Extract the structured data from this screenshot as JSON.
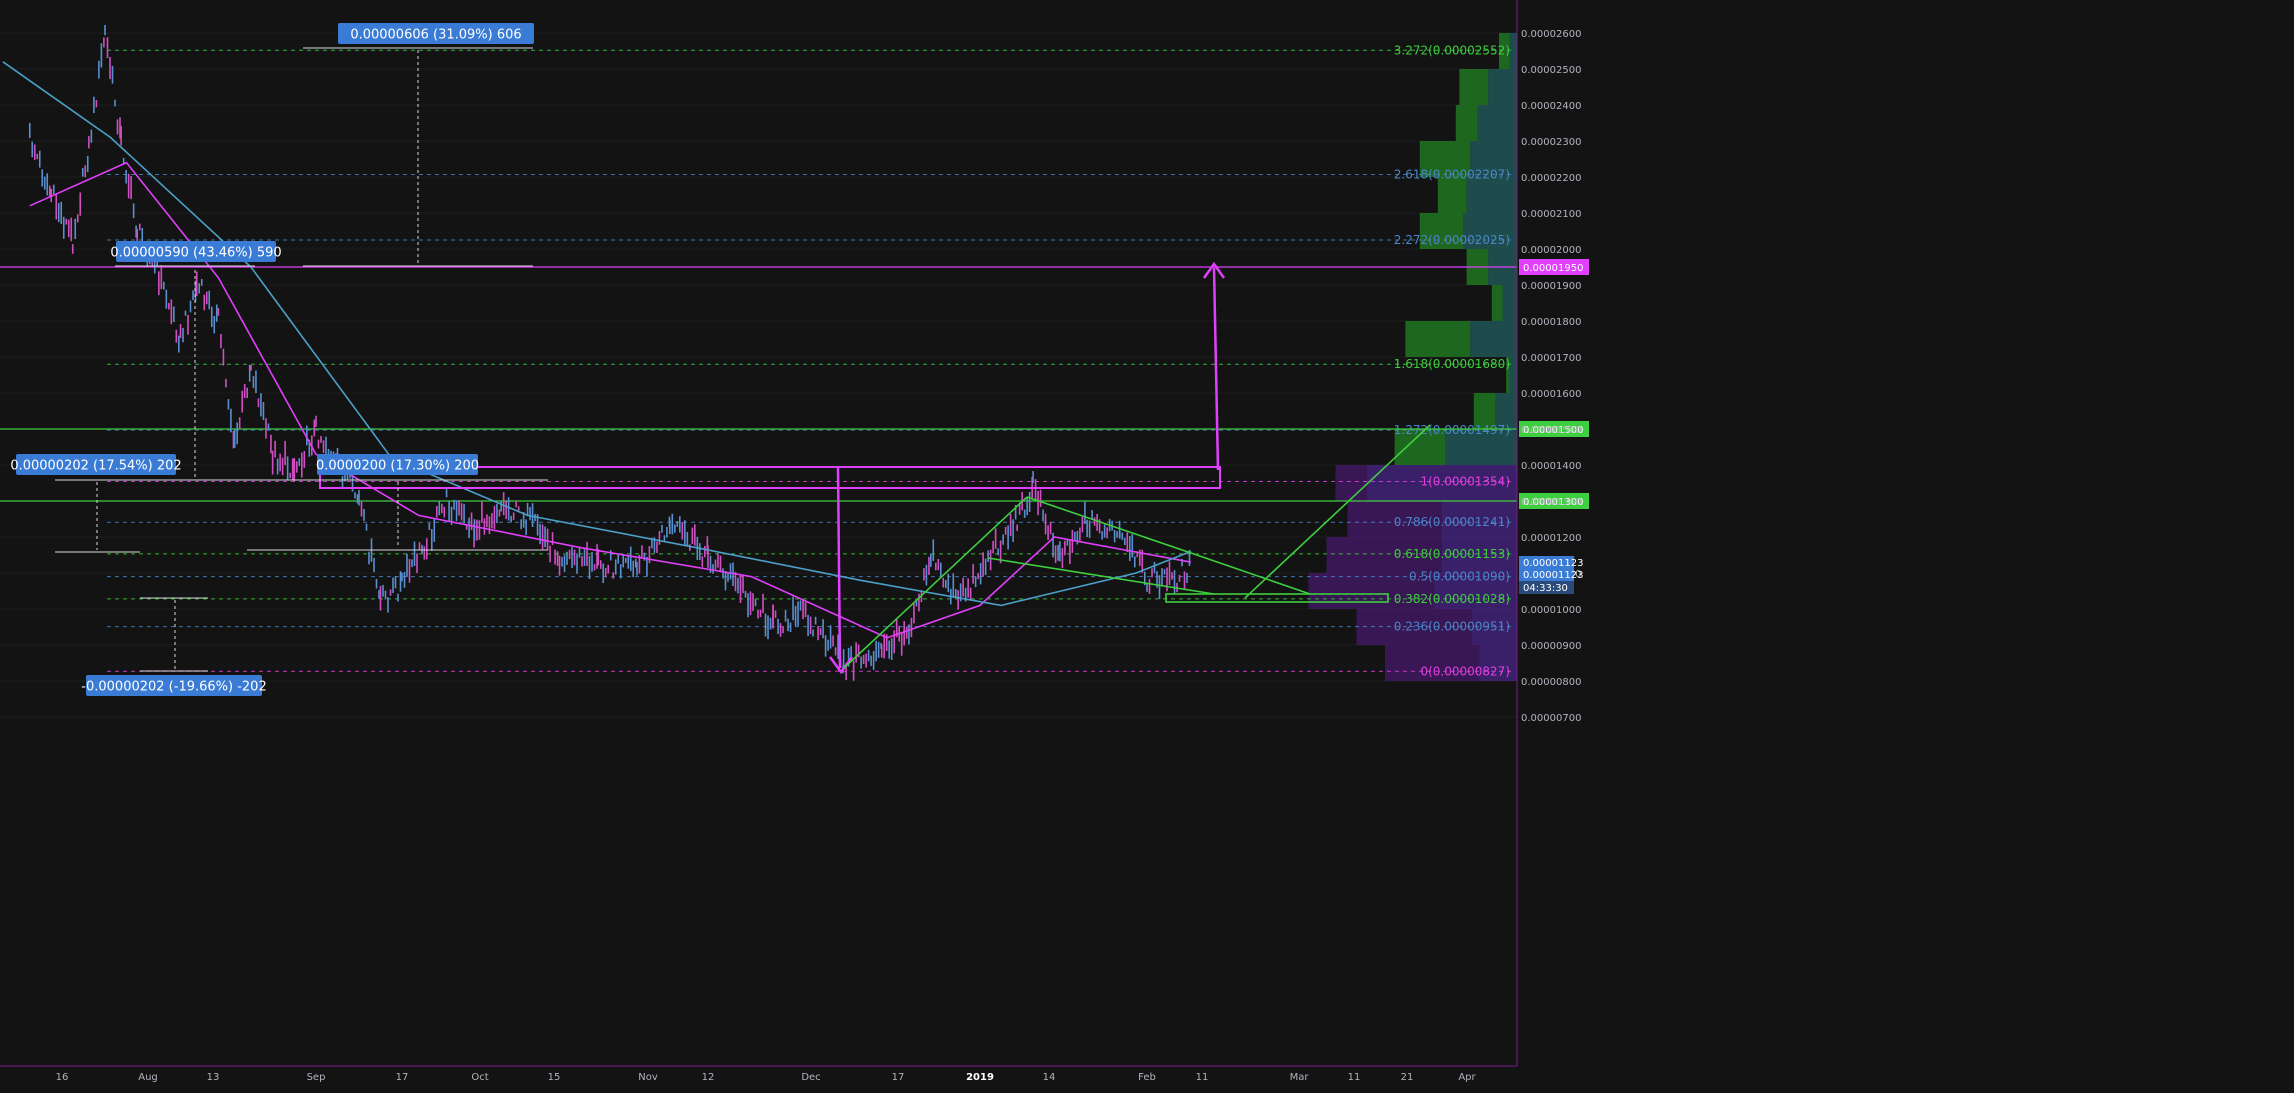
{
  "chart_data": {
    "type": "line",
    "chart_style": "candlestick price chart with fibonacci extension, volume profile and drawn annotations",
    "x_axis_labels": [
      "16",
      "Aug",
      "13",
      "Sep",
      "17",
      "Oct",
      "15",
      "Nov",
      "12",
      "Dec",
      "17",
      "2019",
      "14",
      "Feb",
      "11",
      "Mar",
      "11",
      "21",
      "Apr"
    ],
    "y_axis_ticks": [
      "0.00002600",
      "0.00002500",
      "0.00002400",
      "0.00002300",
      "0.00002200",
      "0.00002100",
      "0.00002000",
      "0.00001900",
      "0.00001800",
      "0.00001700",
      "0.00001600",
      "0.00001500",
      "0.00001400",
      "0.00001300",
      "0.00001200",
      "0.00001100",
      "0.00001000",
      "0.00000900",
      "0.00000800",
      "0.00000700"
    ],
    "ylim": [
      6.6e-06,
      2.67e-05
    ],
    "price_series": {
      "name": "",
      "points": [
        [
          "Jul 10",
          2.31e-05
        ],
        [
          "Jul 14",
          2.15e-05
        ],
        [
          "Jul 18",
          2.03e-05
        ],
        [
          "Jul 21",
          2.28e-05
        ],
        [
          "Jul 24",
          2.6e-05
        ],
        [
          "Jul 27",
          2.3e-05
        ],
        [
          "Jul 30",
          2.05e-05
        ],
        [
          "Aug 3",
          1.93e-05
        ],
        [
          "Aug 7",
          1.75e-05
        ],
        [
          "Aug 10",
          1.9e-05
        ],
        [
          "Aug 14",
          1.8e-05
        ],
        [
          "Aug 17",
          1.45e-05
        ],
        [
          "Aug 20",
          1.68e-05
        ],
        [
          "Aug 24",
          1.43e-05
        ],
        [
          "Aug 28",
          1.39e-05
        ],
        [
          "Sep 1",
          1.5e-05
        ],
        [
          "Sep 5",
          1.4e-05
        ],
        [
          "Sep 9",
          1.3e-05
        ],
        [
          "Sep 13",
          1.02e-05
        ],
        [
          "Sep 17",
          1.07e-05
        ],
        [
          "Sep 21",
          1.18e-05
        ],
        [
          "Sep 25",
          1.3e-05
        ],
        [
          "Sep 30",
          1.22e-05
        ],
        [
          "Oct 5",
          1.29e-05
        ],
        [
          "Oct 10",
          1.25e-05
        ],
        [
          "Oct 16",
          1.15e-05
        ],
        [
          "Oct 23",
          1.13e-05
        ],
        [
          "Oct 30",
          1.11e-05
        ],
        [
          "Nov 5",
          1.23e-05
        ],
        [
          "Nov 12",
          1.15e-05
        ],
        [
          "Nov 18",
          1.06e-05
        ],
        [
          "Nov 24",
          9.6e-06
        ],
        [
          "Nov 30",
          9.9e-06
        ],
        [
          "Dec 7",
          8.5e-06
        ],
        [
          "Dec 14",
          8.8e-06
        ],
        [
          "Dec 19",
          9.5e-06
        ],
        [
          "Dec 23",
          1.15e-05
        ],
        [
          "Dec 28",
          1.02e-05
        ],
        [
          "Jan 3",
          1.15e-05
        ],
        [
          "Jan 8",
          1.25e-05
        ],
        [
          "Jan 11",
          1.34e-05
        ],
        [
          "Jan 16",
          1.15e-05
        ],
        [
          "Jan 21",
          1.25e-05
        ],
        [
          "Jan 27",
          1.2e-05
        ],
        [
          "Feb 1",
          1.09e-05
        ],
        [
          "Feb 6",
          1.08e-05
        ],
        [
          "Feb 9",
          1.123e-05
        ]
      ]
    },
    "moving_averages": [
      {
        "color": "#e040fb",
        "points": [
          [
            "Jul 10",
            2.12e-05
          ],
          [
            "Jul 28",
            2.24e-05
          ],
          [
            "Aug 14",
            1.92e-05
          ],
          [
            "Sep 1",
            1.43e-05
          ],
          [
            "Sep 20",
            1.26e-05
          ],
          [
            "Oct 20",
            1.17e-05
          ],
          [
            "Nov 20",
            1.09e-05
          ],
          [
            "Dec 15",
            9.2e-06
          ],
          [
            "Jan 1",
            1.01e-05
          ],
          [
            "Jan 15",
            1.2e-05
          ],
          [
            "Feb 9",
            1.13e-05
          ]
        ]
      },
      {
        "color": "#4aa0c8",
        "points": [
          [
            "Jul 5",
            2.52e-05
          ],
          [
            "Jul 25",
            2.31e-05
          ],
          [
            "Aug 20",
            1.95e-05
          ],
          [
            "Sep 15",
            1.42e-05
          ],
          [
            "Oct 10",
            1.26e-05
          ],
          [
            "Nov 10",
            1.17e-05
          ],
          [
            "Dec 10",
            1.08e-05
          ],
          [
            "Jan 5",
            1.01e-05
          ],
          [
            "Jan 30",
            1.1e-05
          ],
          [
            "Feb 9",
            1.16e-05
          ]
        ]
      }
    ],
    "fib_levels": [
      {
        "label": "3.272(0.00002552)",
        "value": 2.552e-05,
        "color": "#3ecf3e"
      },
      {
        "label": "2.618(0.00002207)",
        "value": 2.207e-05,
        "color": "#4a86c8"
      },
      {
        "label": "2.272(0.00002025)",
        "value": 2.025e-05,
        "color": "#4a86c8"
      },
      {
        "label": "1.618(0.00001680)",
        "value": 1.68e-05,
        "color": "#3ecf3e"
      },
      {
        "label": "1.272(0.00001497)",
        "value": 1.497e-05,
        "color": "#4a86c8"
      },
      {
        "label": "1(0.00001354)",
        "value": 1.354e-05,
        "color": "#e040e0"
      },
      {
        "label": "0.786(0.00001241)",
        "value": 1.241e-05,
        "color": "#4a86c8"
      },
      {
        "label": "0.618(0.00001153)",
        "value": 1.153e-05,
        "color": "#3ecf3e"
      },
      {
        "label": "0.5(0.00001090)",
        "value": 1.09e-05,
        "color": "#4a86c8"
      },
      {
        "label": "0.382(0.00001028)",
        "value": 1.028e-05,
        "color": "#3ecf3e"
      },
      {
        "label": "0.236(0.00000951)",
        "value": 9.51e-06,
        "color": "#4a86c8"
      },
      {
        "label": "0(0.00000827)",
        "value": 8.27e-06,
        "color": "#e040e0"
      }
    ],
    "horizontal_lines": [
      {
        "value": 1.95e-05,
        "color": "#e040fb",
        "label": "0.00001950"
      },
      {
        "value": 1.5e-05,
        "color": "#3ecf3e",
        "label": "0.00001500"
      },
      {
        "value": 1.3e-05,
        "color": "#3ecf3e",
        "label": "0.00001300"
      }
    ],
    "price_labels": {
      "current": "0.00001123",
      "current_alt": "0.00001123",
      "countdown": "04:33:30"
    },
    "measurement_labels": [
      {
        "text": "0.00000606 (31.09%) 606"
      },
      {
        "text": "0.00000590 (43.46%) 590"
      },
      {
        "text": "0.00000202 (17.54%) 202"
      },
      {
        "text": "0.0000200 (17.30%) 200"
      },
      {
        "text": "-0.00000202 (-19.66%) -202"
      }
    ],
    "volume_profile": {
      "bins": [
        {
          "price": 2.55e-05,
          "up": 0.15,
          "down": 0.1
        },
        {
          "price": 2.45e-05,
          "up": 0.4,
          "down": 0.4
        },
        {
          "price": 2.35e-05,
          "up": 0.3,
          "down": 0.55
        },
        {
          "price": 2.25e-05,
          "up": 0.7,
          "down": 0.65
        },
        {
          "price": 2.15e-05,
          "up": 0.4,
          "down": 0.7
        },
        {
          "price": 2.05e-05,
          "up": 0.6,
          "down": 0.75
        },
        {
          "price": 1.95e-05,
          "up": 0.3,
          "down": 0.4
        },
        {
          "price": 1.85e-05,
          "up": 0.15,
          "down": 0.2
        },
        {
          "price": 1.75e-05,
          "up": 0.9,
          "down": 0.65
        },
        {
          "price": 1.65e-05,
          "up": 0.05,
          "down": 0.1
        },
        {
          "price": 1.55e-05,
          "up": 0.3,
          "down": 0.3
        },
        {
          "price": 1.45e-05,
          "up": 0.7,
          "down": 1.0
        },
        {
          "price": 1.35e-05,
          "up": 0.3,
          "down": 2.0
        },
        {
          "price": 1.25e-05,
          "up": 0.9,
          "down": 1.0
        },
        {
          "price": 1.15e-05,
          "up": 1.1,
          "down": 1.0
        },
        {
          "price": 1.05e-05,
          "up": 1.2,
          "down": 1.1
        },
        {
          "price": 9.5e-06,
          "up": 1.1,
          "down": 0.6
        },
        {
          "price": 8.5e-06,
          "up": 0.9,
          "down": 0.5
        }
      ]
    },
    "colors": {
      "background": "#131313",
      "candle": "#5a8fd0",
      "candle_up": "#d14fc3",
      "magenta": "#e040fb",
      "green": "#3ecf3e",
      "label_bg": "#3a7bd5"
    }
  }
}
